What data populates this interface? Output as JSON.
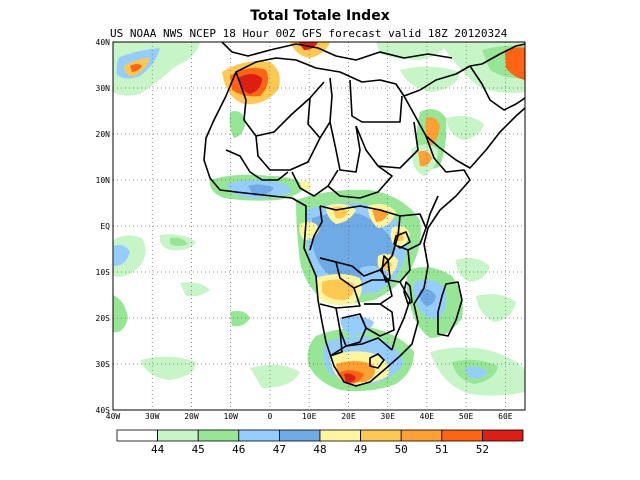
{
  "title": "Total Totale Index",
  "subtitle": "US NOAA NWS NCEP 18 Hour 00Z GFS forecast valid 18Z 20120324",
  "map": {
    "lon_range": [
      -40,
      65
    ],
    "lat_range": [
      -40,
      40
    ],
    "grid": "dotted",
    "lat_ticks": [
      "40N",
      "30N",
      "20N",
      "10N",
      "EQ",
      "10S",
      "20S",
      "30S",
      "40S"
    ],
    "lon_ticks": [
      "40W",
      "30W",
      "20W",
      "10W",
      "0",
      "10E",
      "20E",
      "30E",
      "40E",
      "50E",
      "60E"
    ]
  },
  "colorbar": {
    "labels": [
      "44",
      "45",
      "46",
      "47",
      "48",
      "49",
      "50",
      "51",
      "52"
    ],
    "colors": [
      "#ffffff",
      "#c8f5c8",
      "#96e696",
      "#96cdff",
      "#6eaae6",
      "#fff5a0",
      "#ffc850",
      "#ffa032",
      "#ff6414",
      "#dc1e14"
    ]
  },
  "colors": {
    "green_light": "#c8f5c8",
    "green": "#96e696",
    "blue_light": "#96cdff",
    "blue": "#6eaae6",
    "yellow": "#fff5a0",
    "orange_light": "#ffc850",
    "orange": "#ffa032",
    "red_orange": "#ff6414",
    "red": "#dc1e14"
  }
}
